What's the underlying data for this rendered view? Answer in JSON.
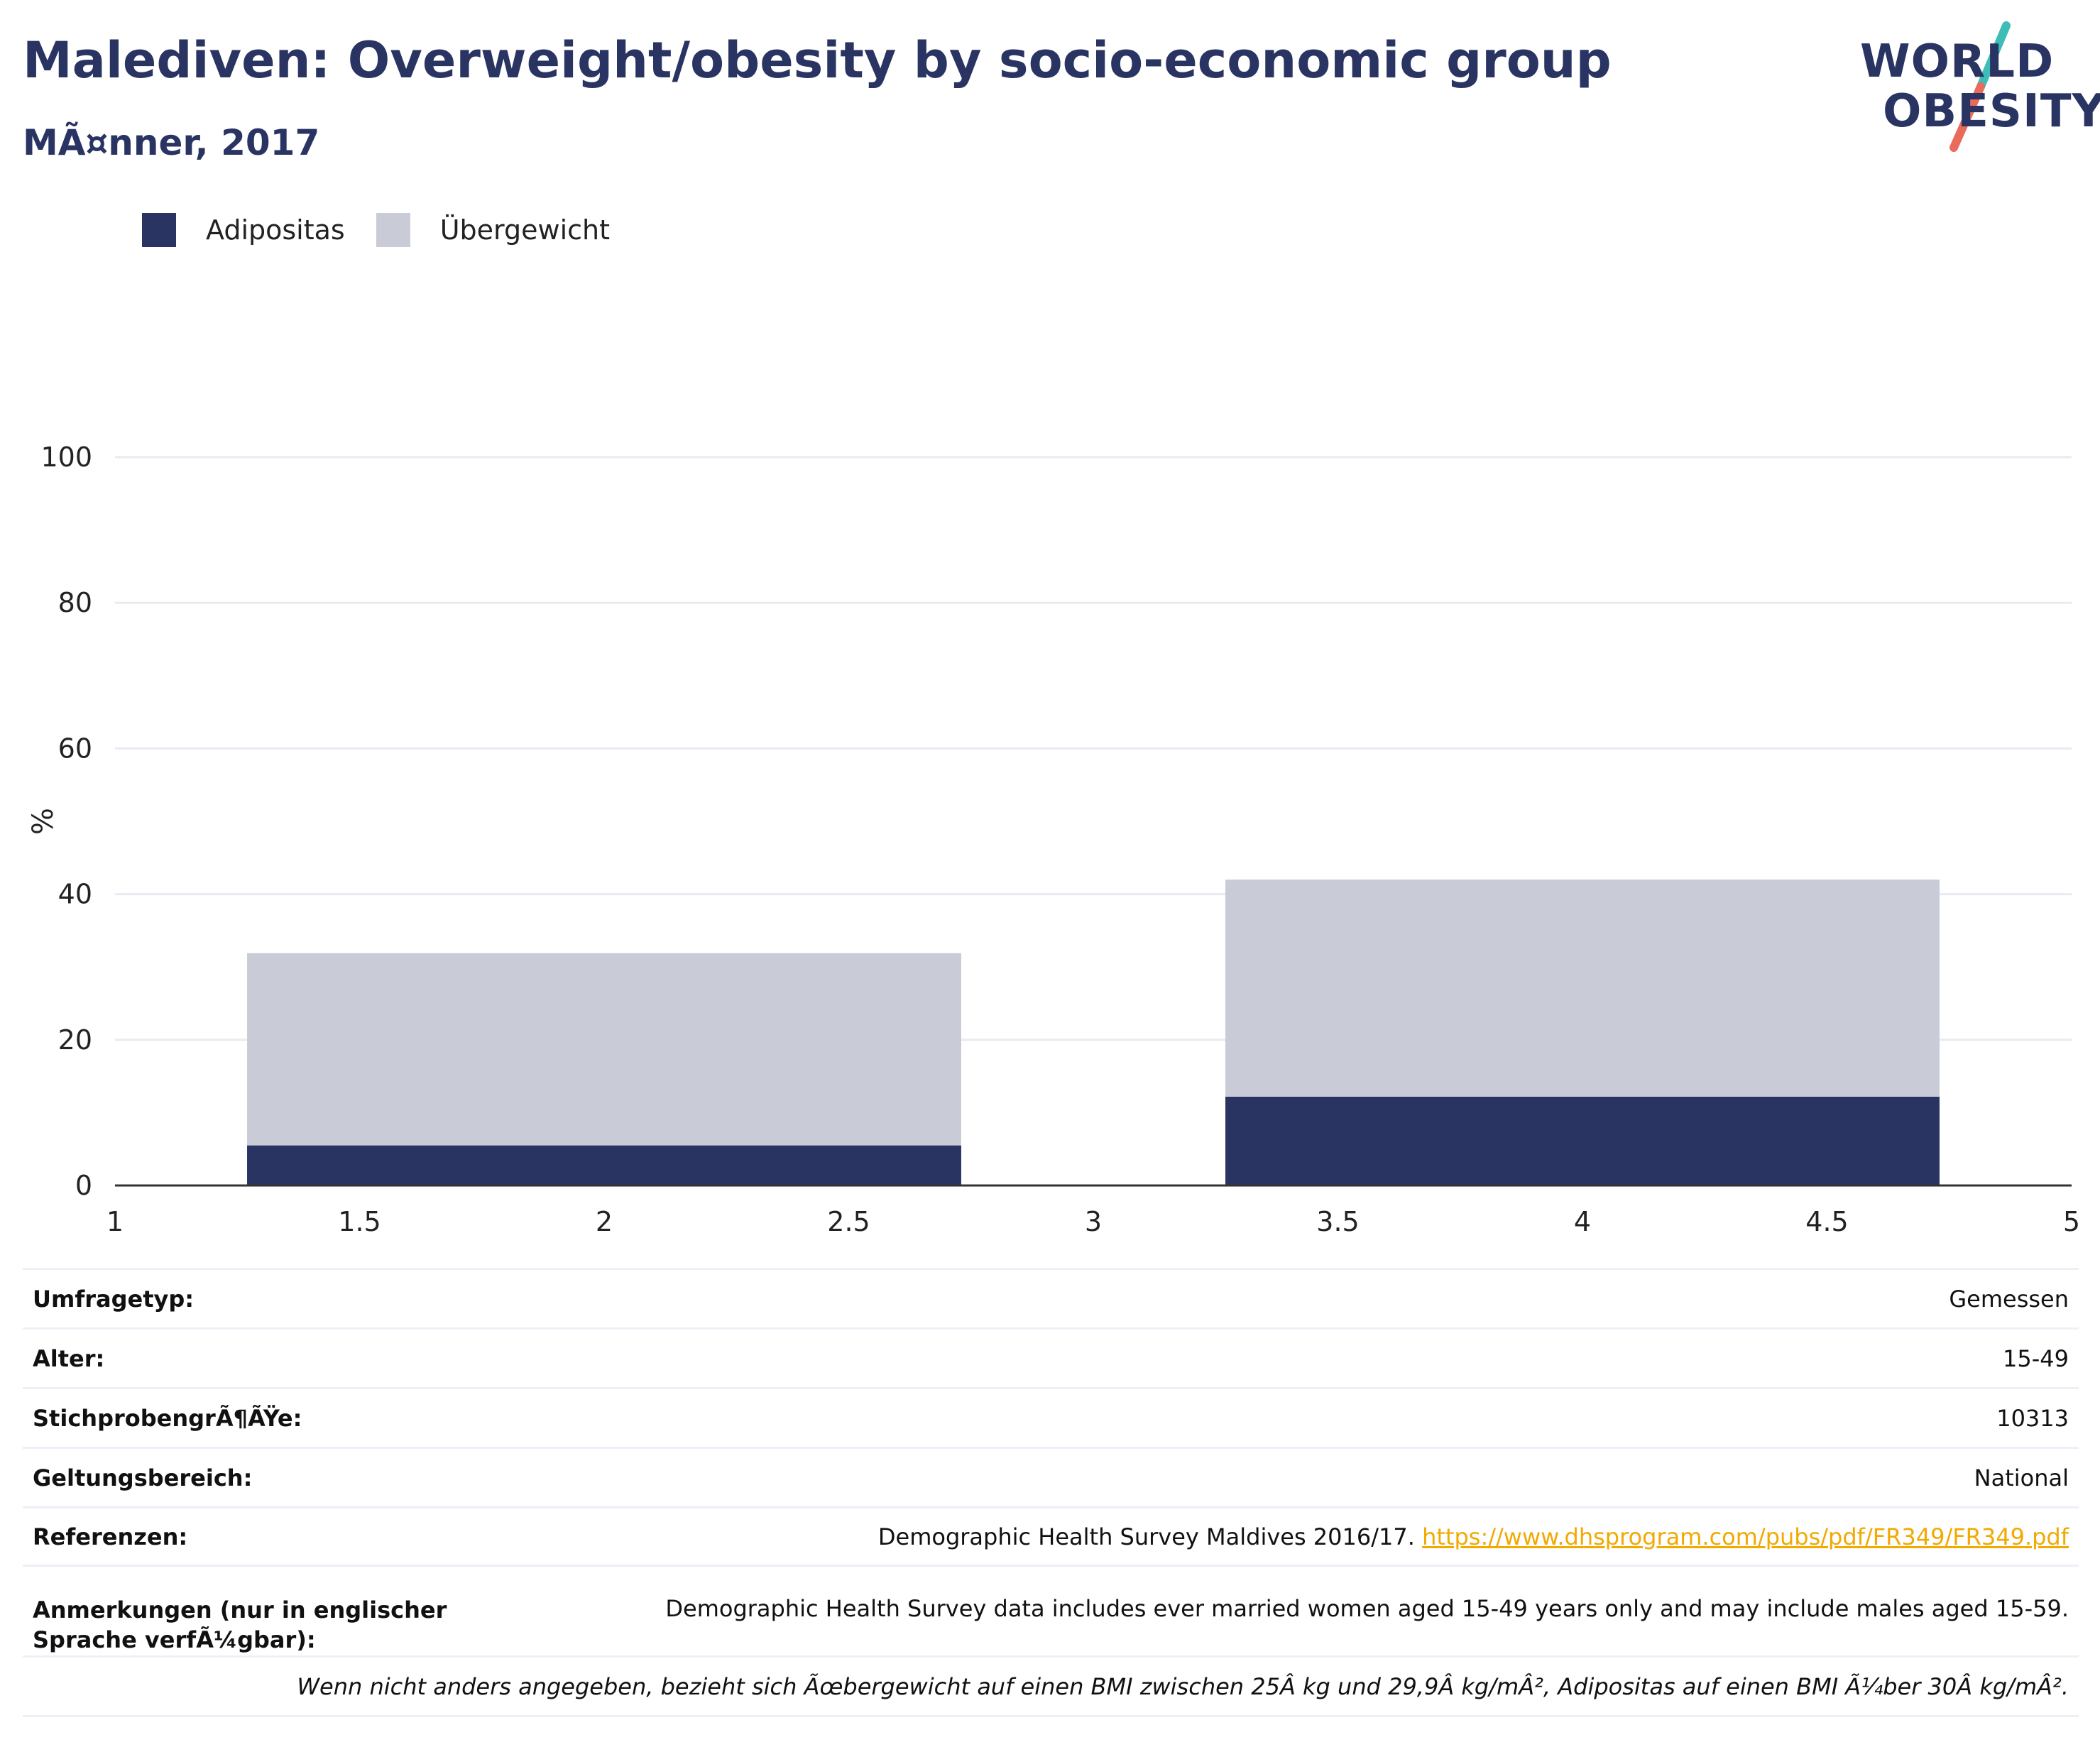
{
  "header": {
    "title": "Malediven: Overweight/obesity by socio-economic group",
    "subtitle": "MÃ¤nner, 2017"
  },
  "logo": {
    "line1": "WORLD",
    "line2": "OBESITY"
  },
  "colors": {
    "adipositas": "#293462",
    "uebergewicht": "#c9ccd7",
    "link": "#f2a900",
    "brand": "#293462"
  },
  "chart_data": {
    "type": "bar",
    "stacked": true,
    "ylabel": "%",
    "xlim": [
      1,
      5
    ],
    "ylim": [
      0,
      100
    ],
    "x_ticks": [
      "1",
      "1.5",
      "2",
      "2.5",
      "3",
      "3.5",
      "4",
      "4.5",
      "5"
    ],
    "y_ticks": [
      "0",
      "20",
      "40",
      "60",
      "80",
      "100"
    ],
    "grid": true,
    "legend_position": "top-left",
    "bars": [
      {
        "x_start": 1.27,
        "x_end": 2.73
      },
      {
        "x_start": 3.27,
        "x_end": 4.73
      }
    ],
    "series": [
      {
        "name": "Adipositas",
        "values": [
          5.5,
          12.2
        ]
      },
      {
        "name": "Übergewicht",
        "values": [
          26.4,
          29.8
        ]
      }
    ]
  },
  "info": {
    "rows": [
      {
        "key": "Umfragetyp:",
        "value": "Gemessen"
      },
      {
        "key": "Alter:",
        "value": "15-49"
      },
      {
        "key": "StichprobengrÃ¶ÃŸe:",
        "value": "10313"
      },
      {
        "key": "Geltungsbereich:",
        "value": "National"
      }
    ],
    "references": {
      "key": "Referenzen:",
      "text": "Demographic Health Survey Maldives 2016/17.",
      "link": "https://www.dhsprogram.com/pubs/pdf/FR349/FR349.pdf"
    },
    "notes": {
      "key": "Anmerkungen (nur in englischer Sprache verfÃ¼gbar):",
      "value": "Demographic Health Survey data includes ever married women aged 15-49 years only and may include males aged 15-59."
    },
    "footnote": "Wenn nicht anders angegeben, bezieht sich Ãœbergewicht auf einen BMI zwischen 25Â kg und 29,9Â kg/mÂ², Adipositas auf einen BMI Ã¼ber 30Â kg/mÂ²."
  }
}
